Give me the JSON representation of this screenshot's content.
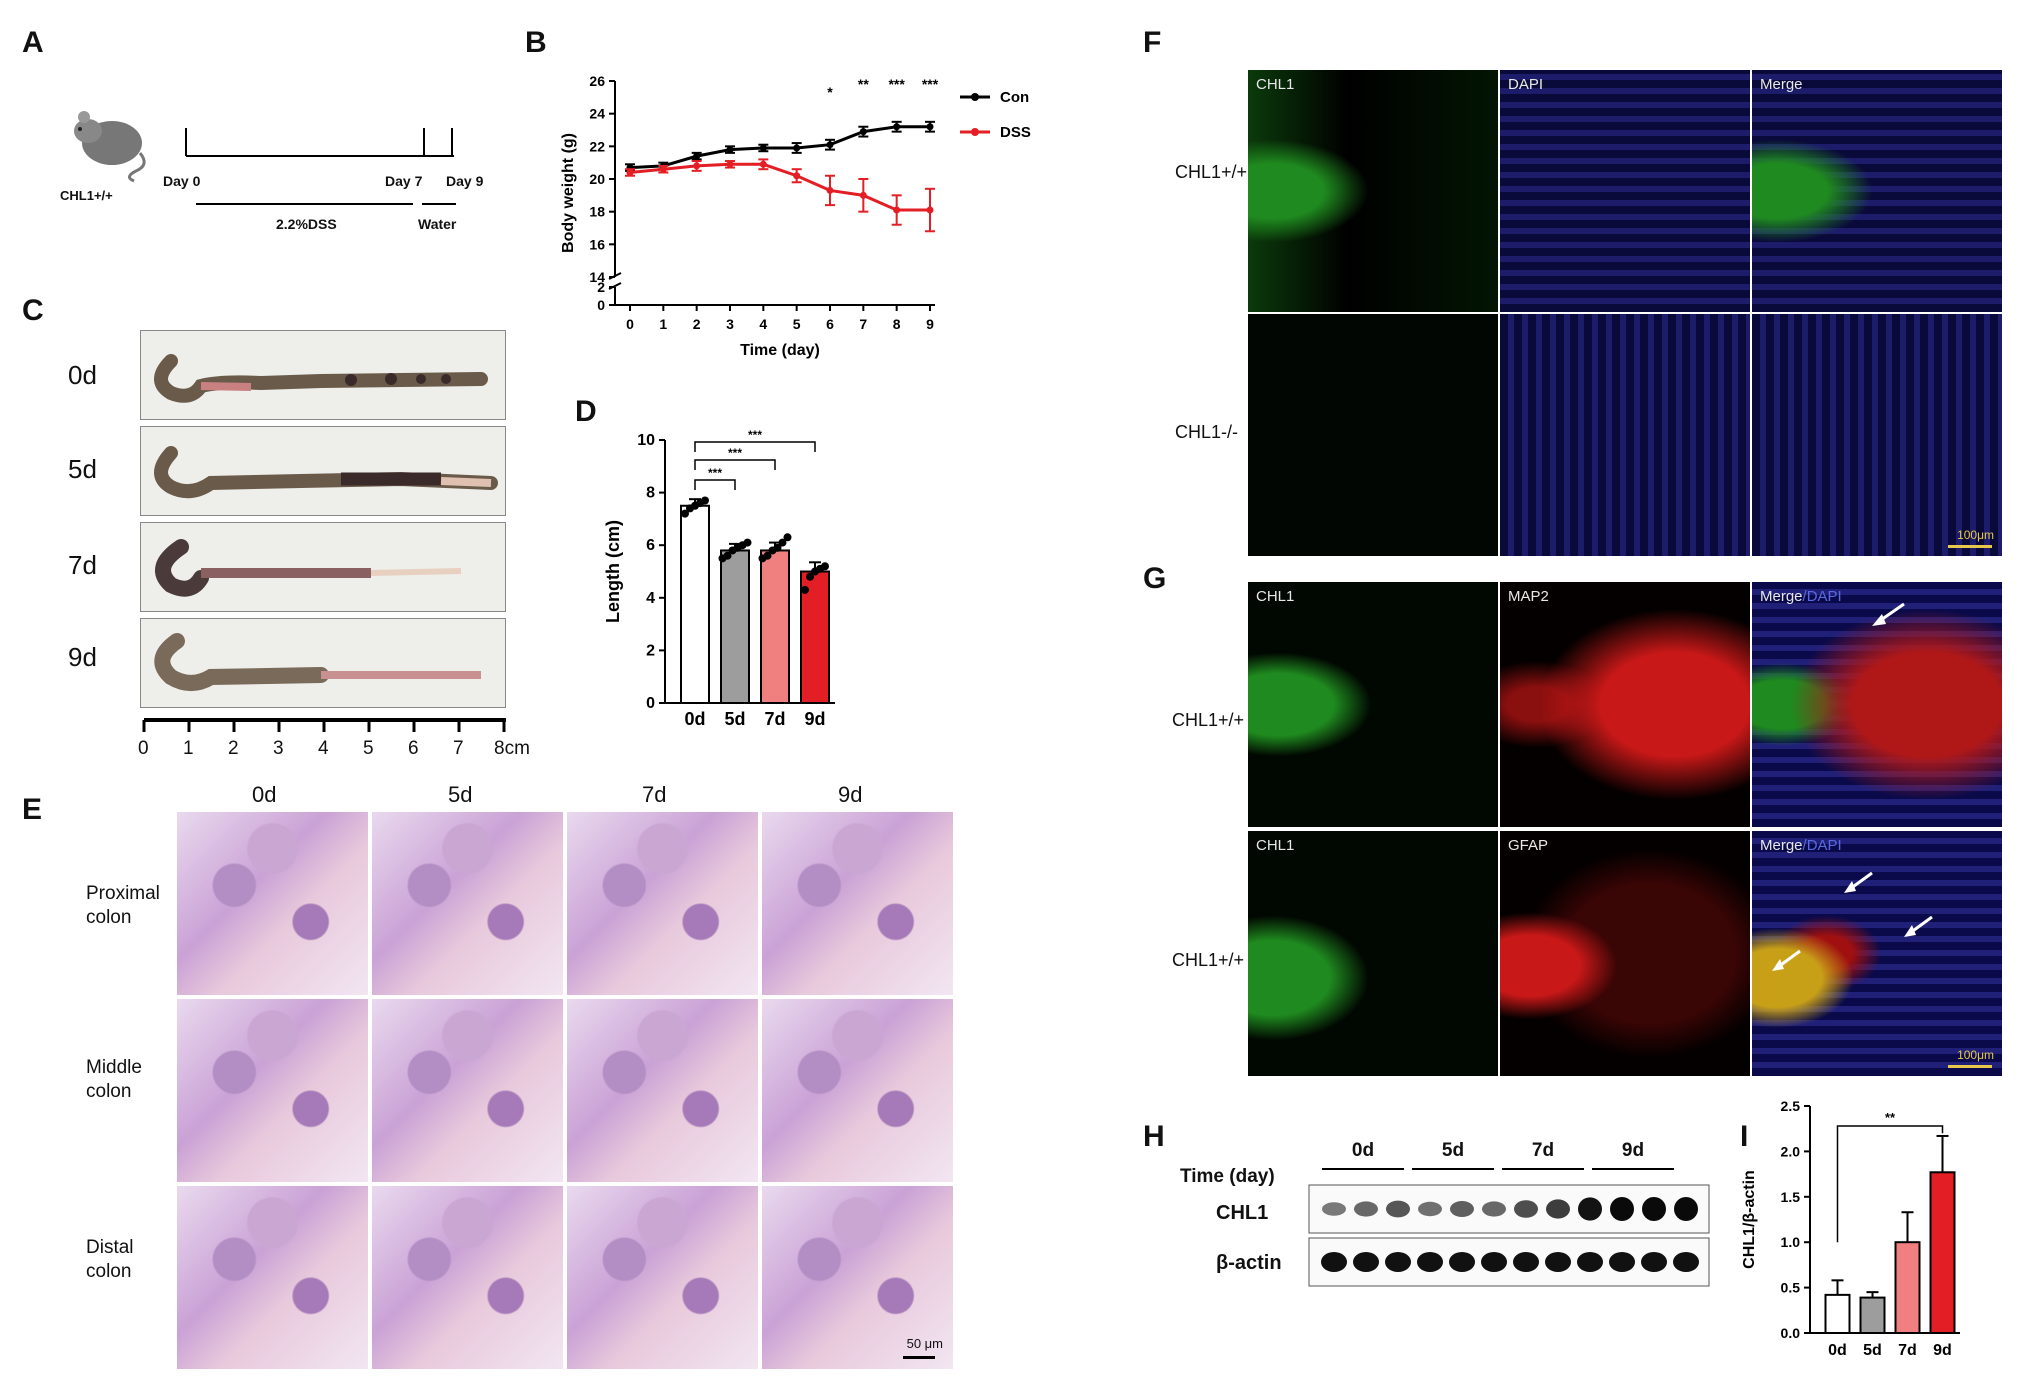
{
  "panels": {
    "A": "A",
    "B": "B",
    "C": "C",
    "D": "D",
    "E": "E",
    "F": "F",
    "G": "G",
    "H": "H",
    "I": "I"
  },
  "panel_a": {
    "mouse_label": "CHL1+/+",
    "timeline": {
      "day0": "Day 0",
      "day7": "Day 7",
      "day9": "Day 9",
      "dss": "2.2%DSS",
      "water": "Water"
    }
  },
  "panel_c": {
    "rows": [
      "0d",
      "5d",
      "7d",
      "9d"
    ],
    "ruler_ticks": [
      "0",
      "1",
      "2",
      "3",
      "4",
      "5",
      "6",
      "7",
      "8cm"
    ]
  },
  "panel_e": {
    "columns": [
      "0d",
      "5d",
      "7d",
      "9d"
    ],
    "rows": [
      [
        "Proximal",
        "colon"
      ],
      [
        "Middle",
        "colon"
      ],
      [
        "Distal",
        "colon"
      ]
    ],
    "scale_bar": "50 μm"
  },
  "panel_f": {
    "channels": [
      "CHL1",
      "DAPI",
      "Merge"
    ],
    "rows": [
      "CHL1+/+",
      "CHL1-/-"
    ],
    "scale_bar": "100μm"
  },
  "panel_g": {
    "top_channels": [
      "CHL1",
      "MAP2",
      "Merge"
    ],
    "bottom_channels": [
      "CHL1",
      "GFAP",
      "Merge"
    ],
    "merge_extra": "/DAPI",
    "rows": [
      "CHL1+/+",
      "CHL1+/+"
    ],
    "scale_bar": "100μm"
  },
  "panel_h": {
    "time_label": "Time (day)",
    "groups": [
      "0d",
      "5d",
      "7d",
      "9d"
    ],
    "bands": [
      "CHL1",
      "β-actin"
    ],
    "chl1_intensity": [
      0.35,
      0.45,
      0.55,
      0.4,
      0.5,
      0.45,
      0.6,
      0.7,
      0.95,
      1.0,
      1.0,
      1.0
    ]
  },
  "chart_data": [
    {
      "panel": "B",
      "type": "line",
      "x": [
        0,
        1,
        2,
        3,
        4,
        5,
        6,
        7,
        8,
        9
      ],
      "xlabel": "Time (day)",
      "ylabel": "Body weight (g)",
      "ylim": [
        0,
        26
      ],
      "y_ticks_upper": [
        14,
        16,
        18,
        20,
        22,
        24,
        26
      ],
      "y_ticks_lower": [
        0,
        2
      ],
      "series": [
        {
          "name": "Con",
          "color": "#000000",
          "values": [
            20.7,
            20.8,
            21.4,
            21.8,
            21.9,
            21.9,
            22.1,
            22.9,
            23.2,
            23.2
          ],
          "err": [
            0.2,
            0.2,
            0.2,
            0.2,
            0.2,
            0.3,
            0.3,
            0.3,
            0.3,
            0.3
          ]
        },
        {
          "name": "DSS",
          "color": "#e31e24",
          "values": [
            20.4,
            20.6,
            20.8,
            20.9,
            20.9,
            20.2,
            19.3,
            19.0,
            18.1,
            18.1
          ],
          "err": [
            0.2,
            0.2,
            0.3,
            0.2,
            0.3,
            0.4,
            0.9,
            1.0,
            0.9,
            1.3
          ]
        }
      ],
      "significance": [
        {
          "x": 6,
          "label": "*"
        },
        {
          "x": 7,
          "label": "**"
        },
        {
          "x": 8,
          "label": "***"
        },
        {
          "x": 9,
          "label": "***"
        }
      ]
    },
    {
      "panel": "D",
      "type": "bar",
      "categories": [
        "0d",
        "5d",
        "7d",
        "9d"
      ],
      "values": [
        7.5,
        5.8,
        5.8,
        5.0
      ],
      "err": [
        0.25,
        0.25,
        0.3,
        0.35
      ],
      "colors": [
        "#ffffff",
        "#9d9d9d",
        "#f08080",
        "#e31e24"
      ],
      "points": [
        [
          7.2,
          7.4,
          7.5,
          7.6,
          7.7
        ],
        [
          5.5,
          5.6,
          5.8,
          5.9,
          6.0,
          6.1
        ],
        [
          5.5,
          5.6,
          5.8,
          5.9,
          6.1,
          6.3
        ],
        [
          4.3,
          4.8,
          5.0,
          5.1,
          5.2
        ]
      ],
      "ylabel": "Length (cm)",
      "ylim": [
        0,
        10
      ],
      "yticks": [
        0,
        2,
        4,
        6,
        8,
        10
      ],
      "significance": [
        {
          "from": "0d",
          "to": "5d",
          "label": "***"
        },
        {
          "from": "0d",
          "to": "7d",
          "label": "***"
        },
        {
          "from": "0d",
          "to": "9d",
          "label": "***"
        }
      ]
    },
    {
      "panel": "I",
      "type": "bar",
      "categories": [
        "0d",
        "5d",
        "7d",
        "9d"
      ],
      "values": [
        0.42,
        0.39,
        1.0,
        1.77
      ],
      "err": [
        0.16,
        0.06,
        0.33,
        0.4
      ],
      "colors": [
        "#ffffff",
        "#9d9d9d",
        "#f08080",
        "#e31e24"
      ],
      "ylabel": "CHL1/β-actin",
      "ylim": [
        0,
        2.5
      ],
      "yticks": [
        0.0,
        0.5,
        1.0,
        1.5,
        2.0,
        2.5
      ],
      "significance": [
        {
          "from": "0d",
          "to": "9d",
          "label": "**"
        }
      ]
    }
  ]
}
